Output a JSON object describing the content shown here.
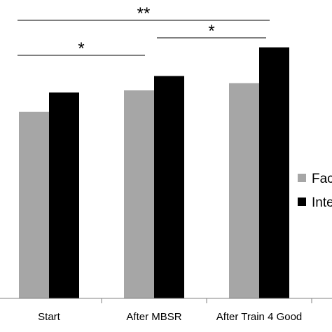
{
  "chart_data": {
    "type": "bar",
    "title": "",
    "xlabel": "",
    "ylabel": "",
    "categories": [
      "Start",
      "After MBSR",
      "After Train 4 Good"
    ],
    "series": [
      {
        "name": "Fac",
        "color": "#a6a6a6",
        "values": [
          2.6,
          2.9,
          3.0
        ]
      },
      {
        "name": "Inte",
        "color": "#000000",
        "values": [
          2.87,
          3.1,
          3.5
        ]
      }
    ],
    "ylim": [
      0,
      4.16
    ],
    "grid": false,
    "legend_position": "right",
    "annotations": [
      {
        "label": "**",
        "from": "Start",
        "to": "After Train 4 Good"
      },
      {
        "label": "*",
        "from": "Start",
        "to": "After MBSR"
      },
      {
        "label": "*",
        "from": "After MBSR",
        "to": "After Train 4 Good"
      }
    ]
  }
}
